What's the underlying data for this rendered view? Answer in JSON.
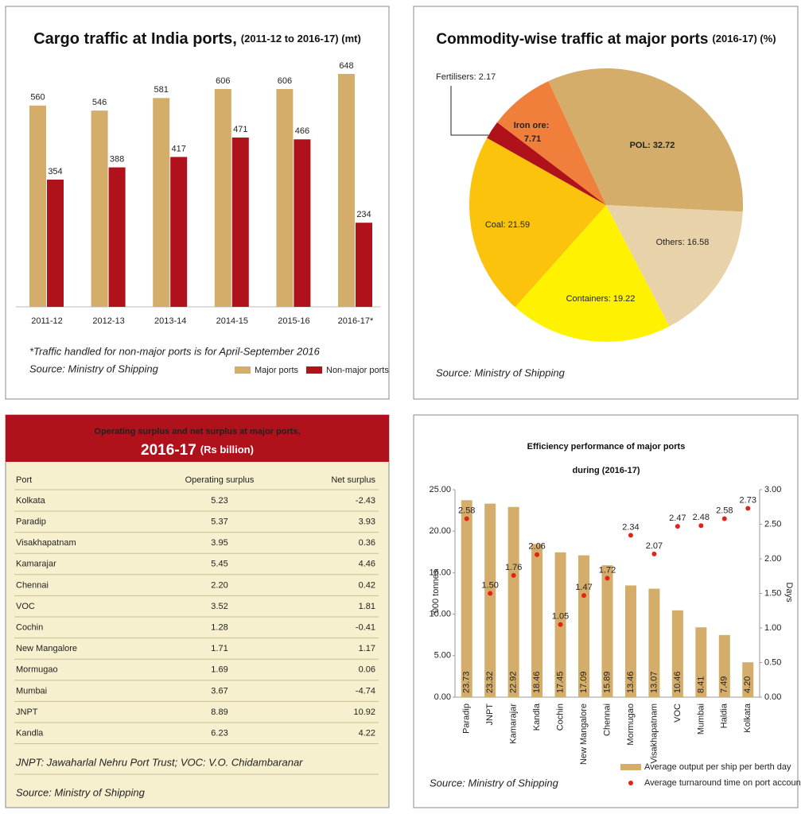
{
  "chart_data": [
    {
      "type": "bar",
      "title": "Cargo traffic at India ports,",
      "subtitle": "(2011-12 to 2016-17) (mt)",
      "categories": [
        "2011-12",
        "2012-13",
        "2013-14",
        "2014-15",
        "2015-16",
        "2016-17*"
      ],
      "series": [
        {
          "name": "Major ports",
          "color": "#d4ad6a",
          "values": [
            560,
            546,
            581,
            606,
            606,
            648
          ]
        },
        {
          "name": "Non-major ports",
          "color": "#b0121b",
          "values": [
            354,
            388,
            417,
            471,
            466,
            234
          ]
        }
      ],
      "note": "*Traffic handled for non-major ports is for April-September 2016",
      "source": "Source: Ministry of Shipping"
    },
    {
      "type": "pie",
      "title": "Commodity-wise traffic at major ports",
      "subtitle": "(2016-17) (%)",
      "values": [
        32.72,
        16.58,
        19.22,
        21.59,
        2.17,
        7.71
      ],
      "value_labels": [
        "POL: 32.72",
        "Others: 16.58",
        "Containers: 19.22",
        "Coal: 21.59",
        "Fertilisers: 2.17",
        "Iron ore: 7.71"
      ],
      "colors": [
        "#d4ad6a",
        "#e8d2aa",
        "#fff200",
        "#fcc30c",
        "#b0121b",
        "#f07f3c"
      ],
      "source": "Source: Ministry of Shipping"
    },
    {
      "type": "combo",
      "title": "Efficiency performance of major ports",
      "subtitle": "during (2016-17)",
      "ylabel": "'000 tonnes",
      "y2label": "Days",
      "categories": [
        "Paradip",
        "JNPT",
        "Kamarajar",
        "Kandla",
        "Cochin",
        "New Mangalore",
        "Chennai",
        "Mormugao",
        "Visakhapatnam",
        "VOC",
        "Mumbai",
        "Haldia",
        "Kolkata"
      ],
      "ylim": [
        0,
        25
      ],
      "yticks": [
        {
          "value": 0,
          "label": "0.00"
        },
        {
          "value": 5,
          "label": "5.00"
        },
        {
          "value": 10,
          "label": "10.00"
        },
        {
          "value": 15,
          "label": "15.00"
        },
        {
          "value": 20,
          "label": "20.00"
        },
        {
          "value": 25,
          "label": "25.00"
        }
      ],
      "y2lim": [
        0,
        3
      ],
      "y2ticks": [
        {
          "value": 0,
          "label": "0.00"
        },
        {
          "value": 0.5,
          "label": "0.50"
        },
        {
          "value": 1,
          "label": "1.00"
        },
        {
          "value": 1.5,
          "label": "1.50"
        },
        {
          "value": 2,
          "label": "2.00"
        },
        {
          "value": 2.5,
          "label": "2.50"
        },
        {
          "value": 3,
          "label": "3.00"
        }
      ],
      "series": [
        {
          "name": "Average output per ship per berth day",
          "type": "bar",
          "color": "#d4ad6a",
          "values": [
            23.73,
            23.32,
            22.92,
            18.46,
            17.45,
            17.09,
            15.89,
            13.46,
            13.07,
            10.46,
            8.41,
            7.49,
            4.2
          ],
          "value_labels": [
            "23.73",
            "23.32",
            "22.92",
            "18.46",
            "17.45",
            "17.09",
            "15.89",
            "13.46",
            "13.07",
            "10.46",
            "8.41",
            "7.49",
            "4.20"
          ]
        },
        {
          "name": "Average turnaround time on port account",
          "type": "scatter",
          "axis": "y2",
          "color": "#e2231a",
          "values": [
            2.58,
            1.5,
            1.76,
            2.06,
            1.05,
            1.47,
            1.72,
            2.34,
            2.07,
            2.47,
            2.48,
            2.58,
            2.73
          ],
          "value_labels": [
            "2.58",
            "1.50",
            "1.76",
            "2.06",
            "1.05",
            "1.47",
            "1.72",
            "2.34",
            "2.07",
            "2.47",
            "2.48",
            "2.58",
            "2.73"
          ]
        }
      ],
      "source": "Source: Ministry of Shipping"
    }
  ],
  "table": {
    "title": "Operating surplus and net surplus at major ports,",
    "subtitle_year": "2016-17",
    "subtitle_unit": "(Rs billion)",
    "columns": [
      "Port",
      "Operating surplus",
      "Net surplus"
    ],
    "rows": [
      [
        "Kolkata",
        "5.23",
        "-2.43"
      ],
      [
        "Paradip",
        "5.37",
        "3.93"
      ],
      [
        "Visakhapatnam",
        "3.95",
        "0.36"
      ],
      [
        "Kamarajar",
        "5.45",
        "4.46"
      ],
      [
        "Chennai",
        "2.20",
        "0.42"
      ],
      [
        "VOC",
        "3.52",
        "1.81"
      ],
      [
        "Cochin",
        "1.28",
        "-0.41"
      ],
      [
        "New Mangalore",
        "1.71",
        "1.17"
      ],
      [
        "Mormugao",
        "1.69",
        "0.06"
      ],
      [
        "Mumbai",
        "3.67",
        "-4.74"
      ],
      [
        "JNPT",
        "8.89",
        "10.92"
      ],
      [
        "Kandla",
        "6.23",
        "4.22"
      ]
    ],
    "note": "JNPT: Jawaharlal Nehru Port Trust; VOC: V.O. Chidambaranar",
    "source": "Source: Ministry of Shipping"
  }
}
